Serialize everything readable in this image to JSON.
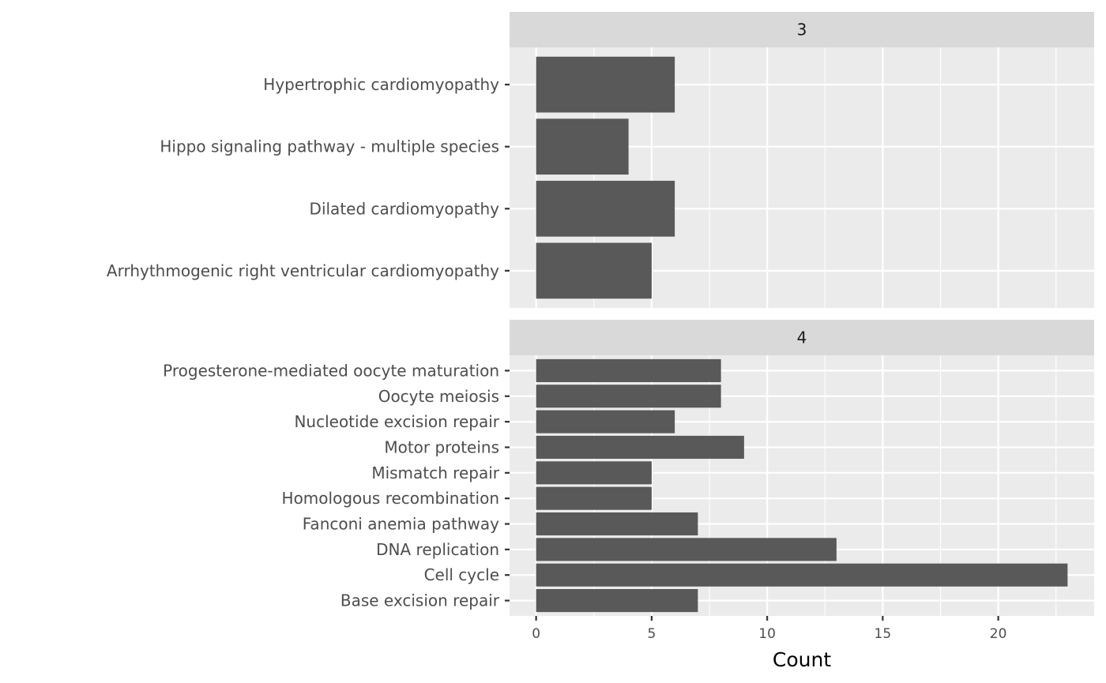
{
  "chart_data": {
    "type": "bar",
    "orientation": "horizontal",
    "xlabel": "Count",
    "ylabel": "",
    "xlim": [
      -1.15,
      24.15
    ],
    "x_ticks": [
      0,
      5,
      10,
      15,
      20
    ],
    "grid": true,
    "colors": {
      "bar": "#595959",
      "panel_background": "#ebebeb",
      "grid": "#ffffff",
      "strip_background": "#d9d9d9"
    },
    "facets": [
      {
        "strip_label": "3",
        "categories": [
          "Hypertrophic cardiomyopathy",
          "Hippo signaling pathway - multiple species",
          "Dilated cardiomyopathy",
          "Arrhythmogenic right ventricular cardiomyopathy"
        ],
        "values": [
          6,
          4,
          6,
          5
        ]
      },
      {
        "strip_label": "4",
        "categories": [
          "Progesterone-mediated oocyte maturation",
          "Oocyte meiosis",
          "Nucleotide excision repair",
          "Motor proteins",
          "Mismatch repair",
          "Homologous recombination",
          "Fanconi anemia pathway",
          "DNA replication",
          "Cell cycle",
          "Base excision repair"
        ],
        "values": [
          8,
          8,
          6,
          9,
          5,
          5,
          7,
          13,
          23,
          7
        ]
      }
    ]
  }
}
